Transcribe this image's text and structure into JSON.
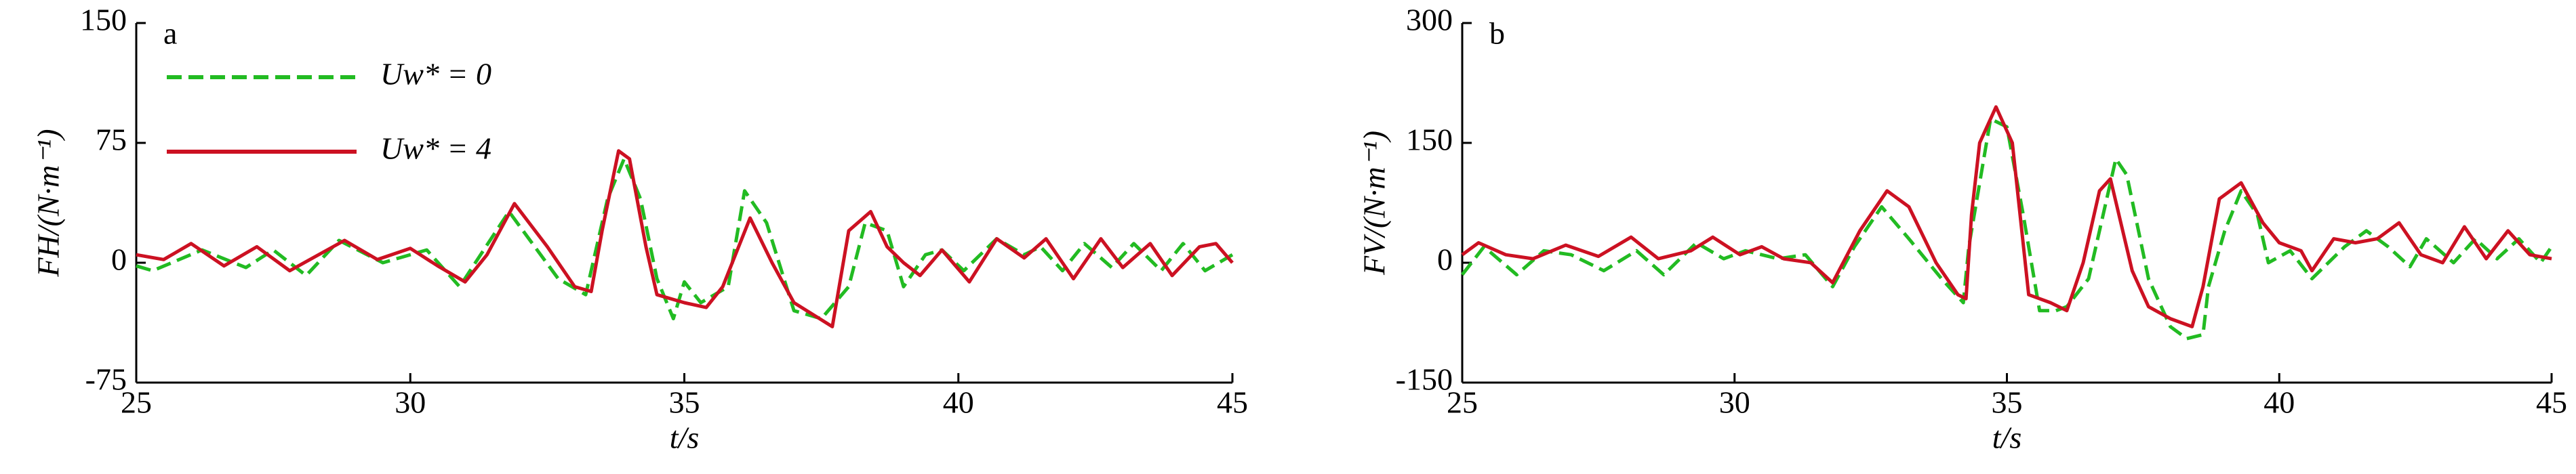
{
  "chart_data": [
    {
      "type": "line",
      "panel": "a",
      "xlabel": "t/s",
      "ylabel": "FH/(N·m⁻¹)",
      "xlim": [
        25,
        45
      ],
      "xticks": [
        25,
        30,
        35,
        40,
        45
      ],
      "ylim": [
        -75,
        150
      ],
      "yticks": [
        -75,
        0,
        75,
        150
      ],
      "legend": "upper left",
      "series": [
        {
          "name": "Uw* = 0",
          "color": "#22bb22",
          "dash": true,
          "x": [
            25,
            25.3,
            26.2,
            27.0,
            27.5,
            28.1,
            28.7,
            29.5,
            30.3,
            30.9,
            31.8,
            32.7,
            33.2,
            33.6,
            33.9,
            34.2,
            34.5,
            34.8,
            35.0,
            35.3,
            35.8,
            36.1,
            36.5,
            37.0,
            37.5,
            38.0,
            38.3,
            38.7,
            39.0,
            39.4,
            39.7,
            40.1,
            40.7,
            41.2,
            41.5,
            41.9,
            42.3,
            42.8,
            43.2,
            43.7,
            44.1,
            44.5,
            45
          ],
          "values": [
            -2,
            -5,
            8,
            -3,
            8,
            -8,
            14,
            0,
            8,
            -15,
            32,
            -10,
            -20,
            40,
            65,
            40,
            -10,
            -35,
            -12,
            -25,
            -15,
            45,
            25,
            -30,
            -35,
            -15,
            25,
            20,
            -15,
            5,
            8,
            -5,
            15,
            5,
            10,
            -5,
            12,
            -3,
            12,
            -5,
            12,
            -5,
            5
          ]
        },
        {
          "name": "Uw* = 4",
          "color": "#cc1122",
          "dash": false,
          "x": [
            25,
            25.5,
            26,
            26.6,
            27.2,
            27.8,
            28.8,
            29.4,
            30.0,
            30.5,
            31.0,
            31.4,
            31.9,
            32.5,
            33.0,
            33.3,
            33.5,
            33.8,
            34.0,
            34.3,
            34.5,
            35.0,
            35.4,
            35.7,
            36.2,
            36.6,
            37.0,
            37.7,
            38.0,
            38.4,
            38.7,
            39.0,
            39.3,
            39.7,
            40.2,
            40.7,
            41.2,
            41.6,
            42.1,
            42.6,
            43.0,
            43.5,
            43.9,
            44.4,
            44.7,
            45
          ],
          "values": [
            5,
            2,
            12,
            -2,
            10,
            -5,
            14,
            2,
            9,
            -2,
            -12,
            5,
            37,
            10,
            -15,
            -18,
            20,
            70,
            65,
            10,
            -20,
            -25,
            -28,
            -15,
            28,
            0,
            -25,
            -40,
            20,
            32,
            10,
            0,
            -8,
            8,
            -12,
            15,
            3,
            15,
            -10,
            15,
            -3,
            12,
            -8,
            10,
            12,
            0
          ]
        }
      ]
    },
    {
      "type": "line",
      "panel": "b",
      "ylabel": "FV/(N·m⁻¹)",
      "xlabel": "t/s",
      "xlim": [
        25,
        45
      ],
      "xticks": [
        25,
        30,
        35,
        40,
        45
      ],
      "ylim": [
        -150,
        300
      ],
      "yticks": [
        -150,
        0,
        150,
        300
      ],
      "series": [
        {
          "color": "#22bb22",
          "dash": true,
          "x": [
            25.0,
            25.4,
            26.0,
            26.5,
            27.0,
            27.6,
            28.2,
            28.7,
            29.3,
            29.8,
            30.2,
            30.8,
            31.3,
            31.8,
            32.2,
            32.7,
            33.2,
            33.8,
            34.2,
            34.3,
            34.7,
            35.0,
            35.3,
            35.6,
            35.9,
            36.1,
            36.5,
            37.0,
            37.2,
            37.6,
            38.0,
            38.3,
            38.6,
            38.7,
            39.0,
            39.3,
            39.6,
            39.8,
            40.2,
            40.6,
            41.2,
            41.6,
            42.0,
            42.4,
            42.7,
            43.2,
            43.6,
            44.0,
            44.4,
            44.8,
            45
          ],
          "values": [
            -15,
            20,
            -15,
            15,
            10,
            -10,
            15,
            -15,
            25,
            5,
            15,
            5,
            10,
            -30,
            20,
            70,
            30,
            -20,
            -50,
            20,
            180,
            170,
            60,
            -60,
            -60,
            -55,
            -20,
            130,
            110,
            -20,
            -80,
            -95,
            -90,
            -30,
            40,
            90,
            60,
            0,
            15,
            -20,
            20,
            40,
            20,
            -5,
            30,
            0,
            30,
            5,
            30,
            0,
            20
          ]
        },
        {
          "color": "#cc1122",
          "dash": false,
          "x": [
            25.0,
            25.3,
            25.8,
            26.3,
            26.9,
            27.5,
            28.1,
            28.6,
            29.2,
            29.6,
            30.1,
            30.5,
            30.9,
            31.4,
            31.8,
            32.3,
            32.8,
            33.2,
            33.7,
            34.1,
            34.25,
            34.35,
            34.5,
            34.8,
            35.1,
            35.4,
            35.8,
            36.1,
            36.4,
            36.7,
            36.9,
            37.3,
            37.6,
            38.0,
            38.4,
            38.6,
            38.9,
            39.3,
            39.7,
            40.0,
            40.4,
            40.6,
            41.0,
            41.4,
            41.8,
            42.2,
            42.6,
            43.0,
            43.4,
            43.8,
            44.2,
            44.6,
            45
          ],
          "values": [
            10,
            25,
            10,
            5,
            22,
            8,
            32,
            5,
            15,
            32,
            10,
            20,
            5,
            0,
            -25,
            40,
            90,
            70,
            0,
            -40,
            -45,
            60,
            150,
            195,
            150,
            -40,
            -50,
            -60,
            0,
            90,
            105,
            -10,
            -55,
            -70,
            -80,
            -30,
            80,
            100,
            50,
            25,
            15,
            -10,
            30,
            25,
            30,
            50,
            10,
            0,
            45,
            5,
            40,
            10,
            5
          ]
        }
      ]
    }
  ]
}
